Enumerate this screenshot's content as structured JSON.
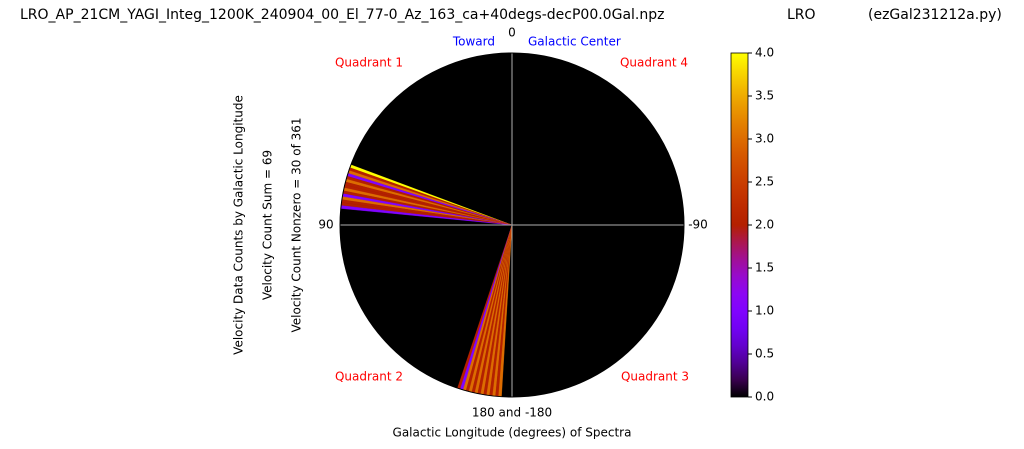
{
  "chart_data": {
    "type": "polar-bar",
    "title": "LRO_AP_21CM_YAGI_Integ_1200K_240904_00_El_77-0_Az_163_ca+40degs-decP00.0Gal.npz",
    "station": "LRO",
    "program": "(ezGal231212a.py)",
    "ylabel_lines": [
      "Velocity Data Counts by Galactic Longitude",
      "Velocity Count Sum = 69",
      "Velocity Count Nonzero = 30 of 361"
    ],
    "xlabel": "Galactic Longitude (degrees) of Spectra",
    "annotations": {
      "toward": "Toward",
      "center": "Galactic Center",
      "q1": "Quadrant 1",
      "q2": "Quadrant 2",
      "q3": "Quadrant 3",
      "q4": "Quadrant 4"
    },
    "xticks": [
      0,
      90,
      {
        "value": 180,
        "label": "180 and -180"
      },
      -90
    ],
    "x": [
      70,
      71,
      72,
      73,
      74,
      75,
      76,
      77,
      78,
      79,
      80,
      81,
      82,
      83,
      84,
      162,
      163,
      164,
      165,
      166,
      167,
      168,
      169,
      170,
      171,
      172,
      173,
      174,
      175,
      176
    ],
    "values": [
      4,
      2,
      3,
      1,
      2,
      3,
      2,
      2,
      3,
      2,
      1,
      3,
      2,
      2,
      1,
      2,
      1,
      3,
      2,
      3,
      2,
      3,
      2,
      3,
      2,
      3,
      2,
      3,
      2,
      3
    ],
    "colormap": "gnuplot",
    "clim": [
      0,
      4
    ],
    "cticks": [
      {
        "value": 0,
        "label": "0.0"
      },
      0.5,
      {
        "value": 1,
        "label": "1.0"
      },
      1.5,
      {
        "value": 2,
        "label": "2.0"
      },
      2.5,
      {
        "value": 3,
        "label": "3.0"
      },
      3.5,
      {
        "value": 4,
        "label": "4.0"
      }
    ],
    "grid": true
  }
}
